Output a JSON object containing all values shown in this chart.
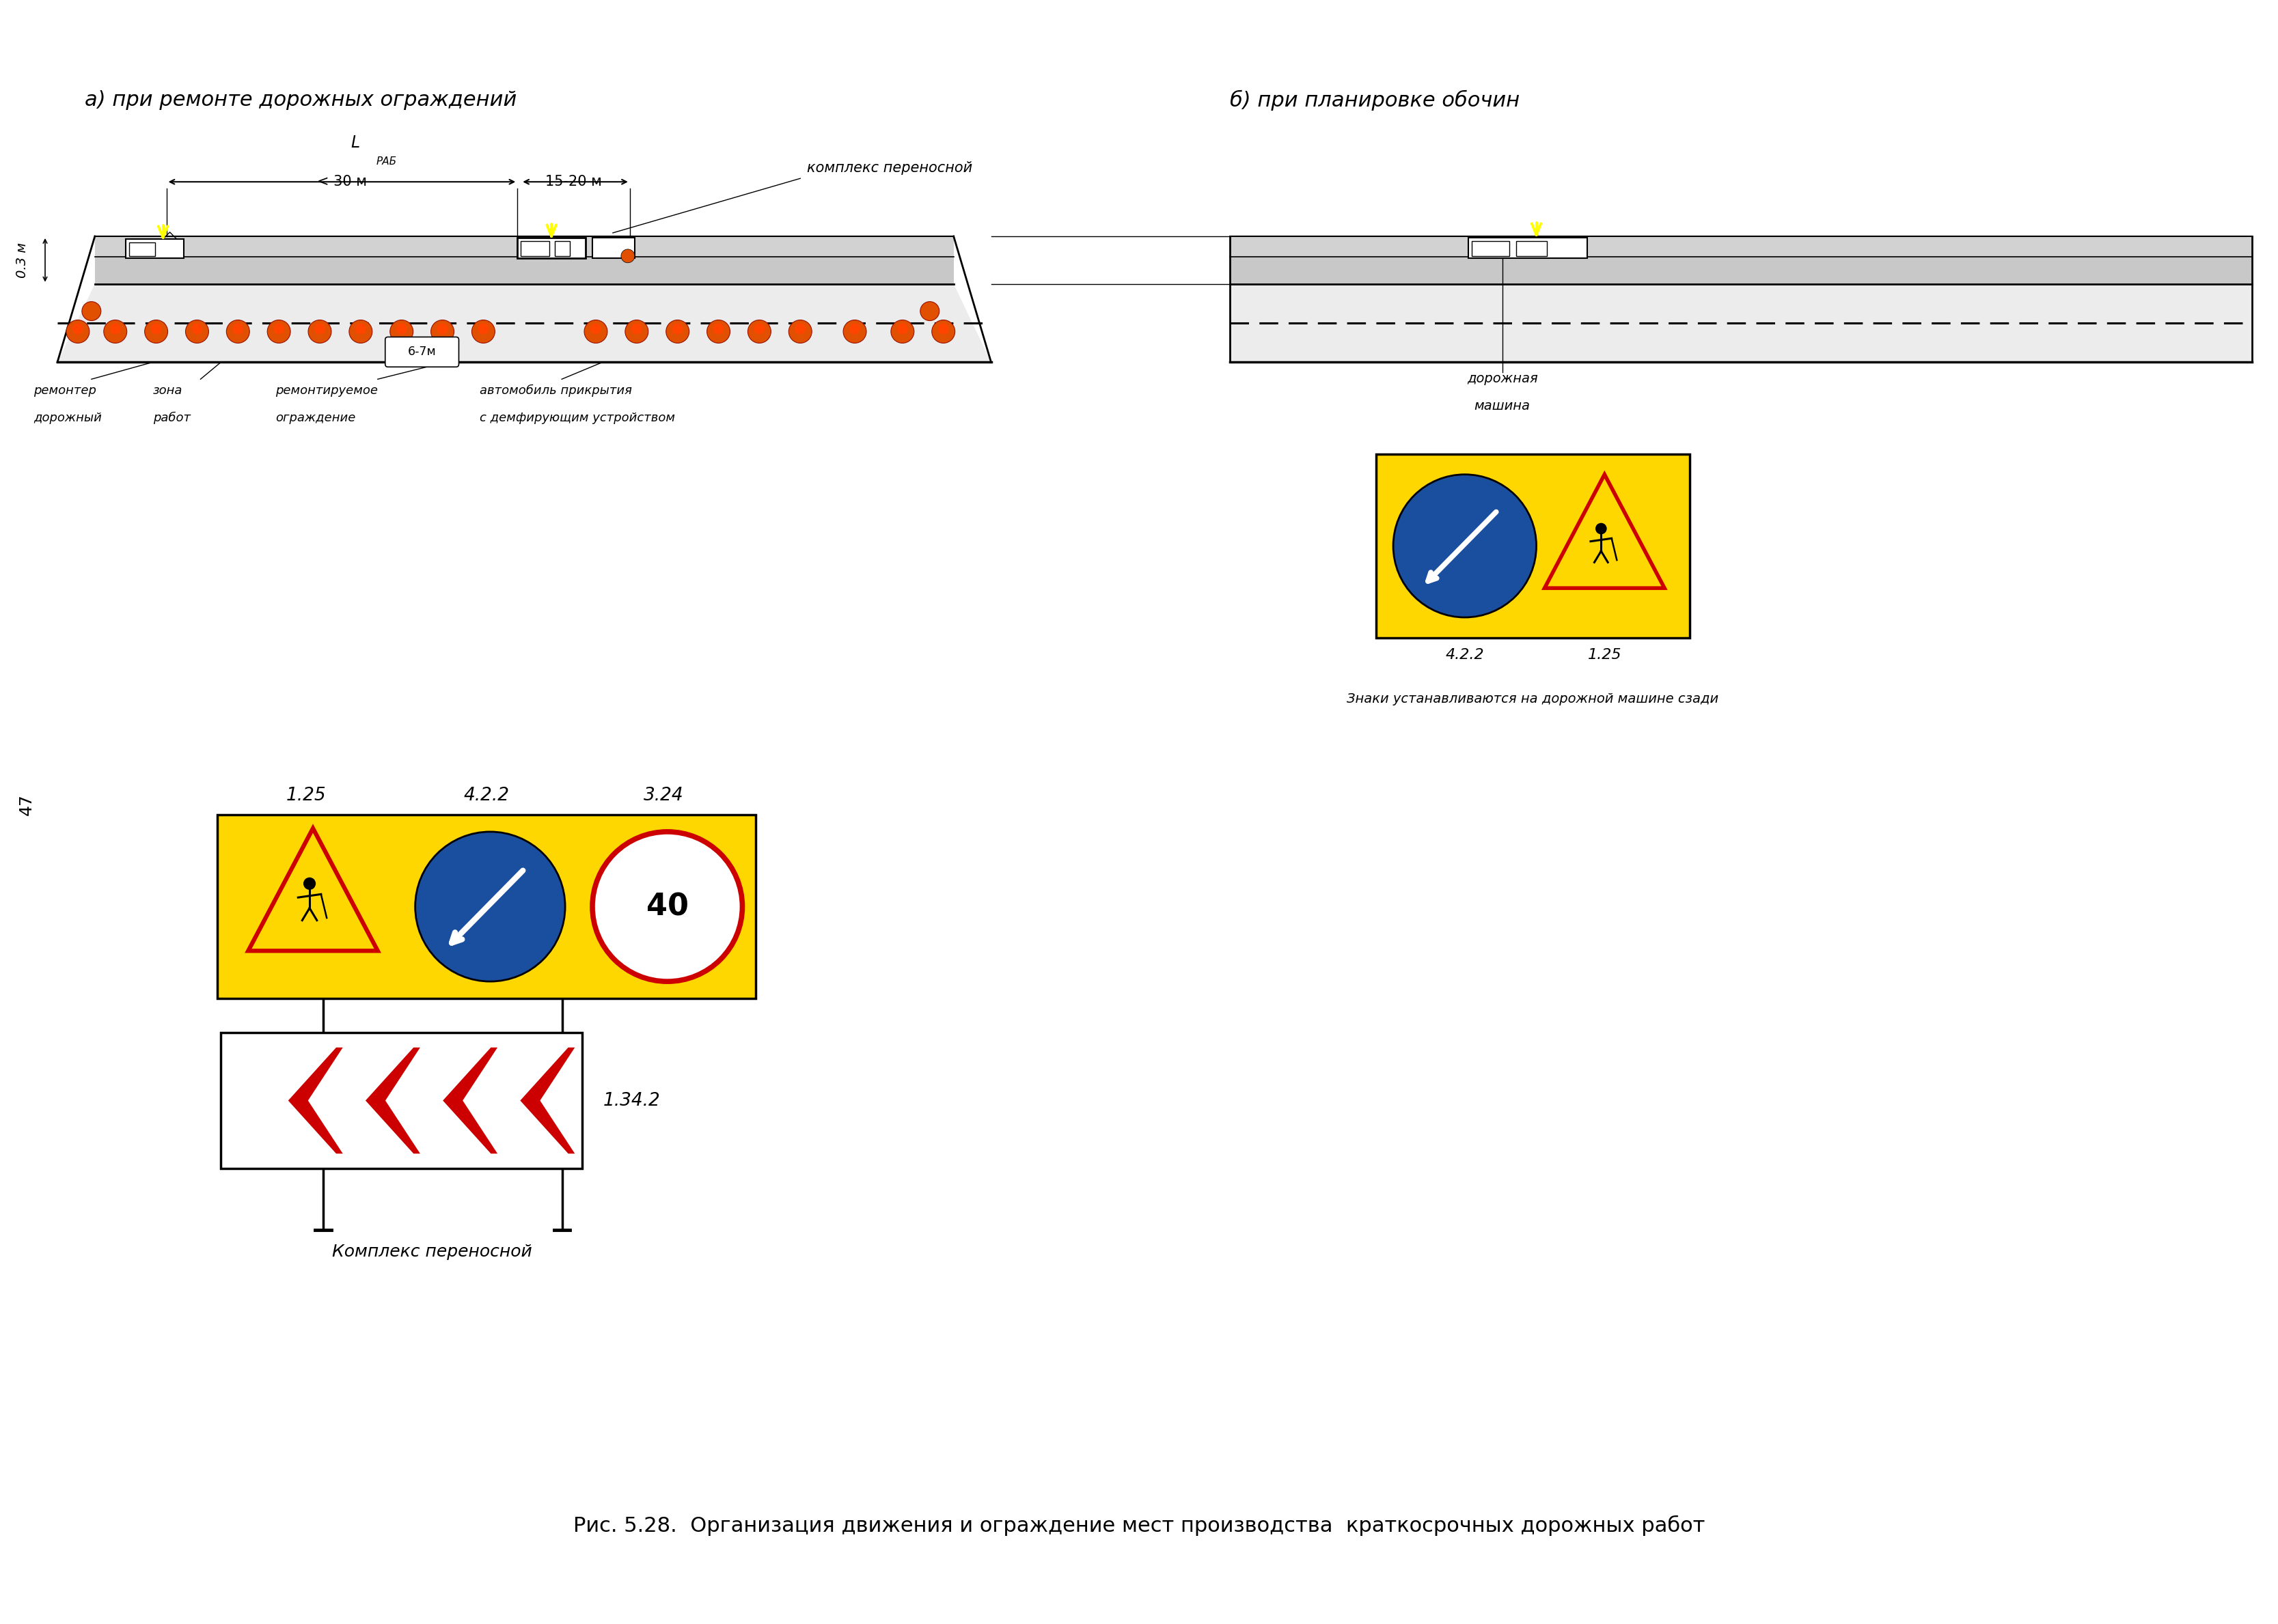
{
  "bg_color": "#ffffff",
  "title_a": "а) при ремонте дорожных ограждений",
  "title_b": "б) при планировке обочин",
  "caption": "Рис. 5.28.  Организация движения и ограждение мест производства  краткосрочных дорожных работ",
  "label_dist1": "< 30 м",
  "label_dist2": "15-20 м",
  "label_complex_a": "комплекс переносной",
  "label_67m": "6-7м",
  "label_125_top": "1.25",
  "label_422_top": "4.2.2",
  "label_324_top": "3.24",
  "label_1342": "1.34.2",
  "label_422_b": "4.2.2",
  "label_125_b": "1.25",
  "label_signs_note": "Знаки устанавливаются на дорожной машине сзади",
  "label_complex_bottom": "Комплекс переносной",
  "label_repairman_1": "ремонтер",
  "label_repairman_2": "дорожный",
  "label_zone_1": "зона",
  "label_zone_2": "работ",
  "label_fence_1": "ремонтируемое",
  "label_fence_2": "ограждение",
  "label_car_1": "автомобиль прикрытия",
  "label_car_2": "с демфирующим устройством",
  "label_road_machine_1": "дорожная",
  "label_road_machine_2": "машина",
  "col_yellow": "#FFD700",
  "col_red": "#CC0000",
  "col_white": "#ffffff",
  "col_blue": "#1a4fa0",
  "col_black": "#000000",
  "col_orange": "#DD4400",
  "col_road_light": "#ececec",
  "col_shoulder": "#c8c8c8",
  "col_rail": "#d2d2d2"
}
